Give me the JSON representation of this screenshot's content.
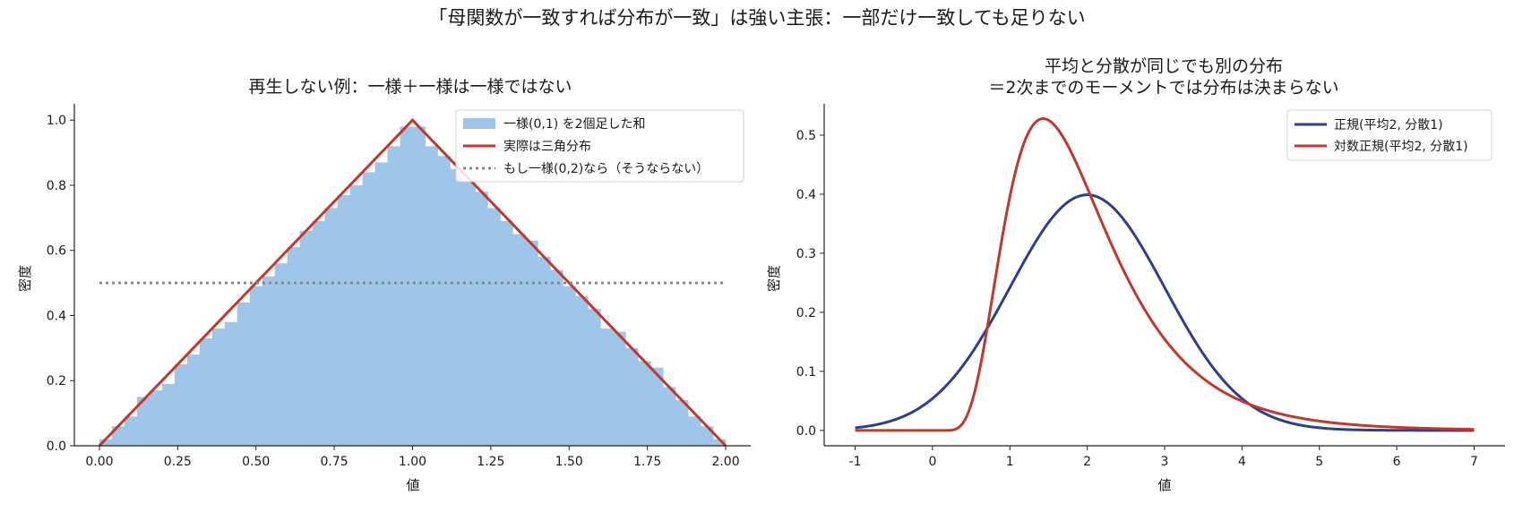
{
  "figure": {
    "suptitle": "「母関数が一致すれば分布が一致」は強い主張：一部だけ一致しても足りない"
  },
  "chart_data": [
    {
      "type": "bar",
      "title": "再生しない例：一様＋一様は一様ではない",
      "xlabel": "値",
      "ylabel": "密度",
      "xlim": [
        -0.08,
        2.08
      ],
      "ylim": [
        0,
        1.05
      ],
      "x_ticks": [
        "0.00",
        "0.25",
        "0.50",
        "0.75",
        "1.00",
        "1.25",
        "1.50",
        "1.75",
        "2.00"
      ],
      "y_ticks": [
        "0.0",
        "0.2",
        "0.4",
        "0.6",
        "0.8",
        "1.0"
      ],
      "grid": false,
      "legend_position": "upper right",
      "histogram": {
        "name": "一様(0,1) を2個足した和",
        "bin_width": 0.04,
        "bin_start": 0.0,
        "color": "#9fc5e8",
        "values": [
          0.02,
          0.06,
          0.09,
          0.15,
          0.17,
          0.19,
          0.25,
          0.28,
          0.33,
          0.36,
          0.38,
          0.44,
          0.49,
          0.52,
          0.56,
          0.61,
          0.66,
          0.69,
          0.73,
          0.77,
          0.8,
          0.84,
          0.87,
          0.92,
          0.98,
          0.98,
          0.92,
          0.89,
          0.85,
          0.81,
          0.78,
          0.73,
          0.69,
          0.65,
          0.63,
          0.58,
          0.54,
          0.49,
          0.46,
          0.42,
          0.36,
          0.35,
          0.3,
          0.26,
          0.24,
          0.18,
          0.14,
          0.09,
          0.06,
          0.02
        ]
      },
      "lines": [
        {
          "name": "実際は三角分布",
          "style": "solid",
          "color": "#c0392b",
          "x": [
            0,
            1,
            2
          ],
          "y": [
            0,
            1,
            0
          ]
        },
        {
          "name": "もし一様(0,2)なら（そうならない）",
          "style": "dotted",
          "color": "#7f8c8d",
          "x": [
            0,
            2
          ],
          "y": [
            0.5,
            0.5
          ]
        }
      ]
    },
    {
      "type": "line",
      "title": "平均と分散が同じでも別の分布\n＝2次までのモーメントでは分布は決まらない",
      "xlabel": "値",
      "ylabel": "密度",
      "xlim": [
        -1.4,
        7.4
      ],
      "ylim": [
        -0.026,
        0.553
      ],
      "x_ticks": [
        "-1",
        "0",
        "1",
        "2",
        "3",
        "4",
        "5",
        "6",
        "7"
      ],
      "y_ticks": [
        "0.0",
        "0.1",
        "0.2",
        "0.3",
        "0.4",
        "0.5"
      ],
      "grid": false,
      "legend_position": "upper right",
      "series": [
        {
          "name": "正規(平均2, 分散1)",
          "color": "#2c3e8f",
          "dist": "normal",
          "mean": 2,
          "variance": 1,
          "x_range": [
            -1,
            7
          ]
        },
        {
          "name": "対数正規(平均2, 分散1)",
          "color": "#c0392b",
          "dist": "lognormal",
          "mean": 2,
          "variance": 1,
          "x_range": [
            -1,
            7
          ]
        }
      ]
    }
  ]
}
